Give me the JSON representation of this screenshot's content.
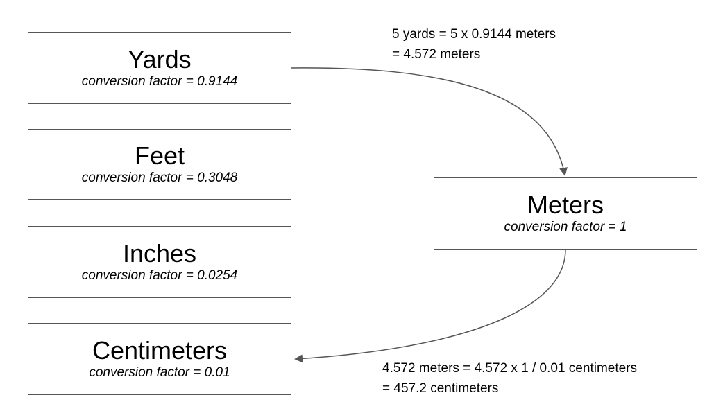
{
  "units": {
    "yards": {
      "name": "Yards",
      "factor": "conversion factor = 0.9144"
    },
    "feet": {
      "name": "Feet",
      "factor": "conversion factor = 0.3048"
    },
    "inches": {
      "name": "Inches",
      "factor": "conversion factor = 0.0254"
    },
    "centimeters": {
      "name": "Centimeters",
      "factor": "conversion factor = 0.01"
    },
    "meters": {
      "name": "Meters",
      "factor": "conversion factor = 1"
    }
  },
  "notes": {
    "yards_to_meters": {
      "line1": "5 yards = 5 x 0.9144 meters",
      "line2": "= 4.572 meters"
    },
    "meters_to_centimeters": {
      "line1": "4.572 meters = 4.572 x 1 / 0.01 centimeters",
      "line2": "= 457.2 centimeters"
    }
  },
  "colors": {
    "border": "#555555",
    "arrow": "#555555"
  }
}
